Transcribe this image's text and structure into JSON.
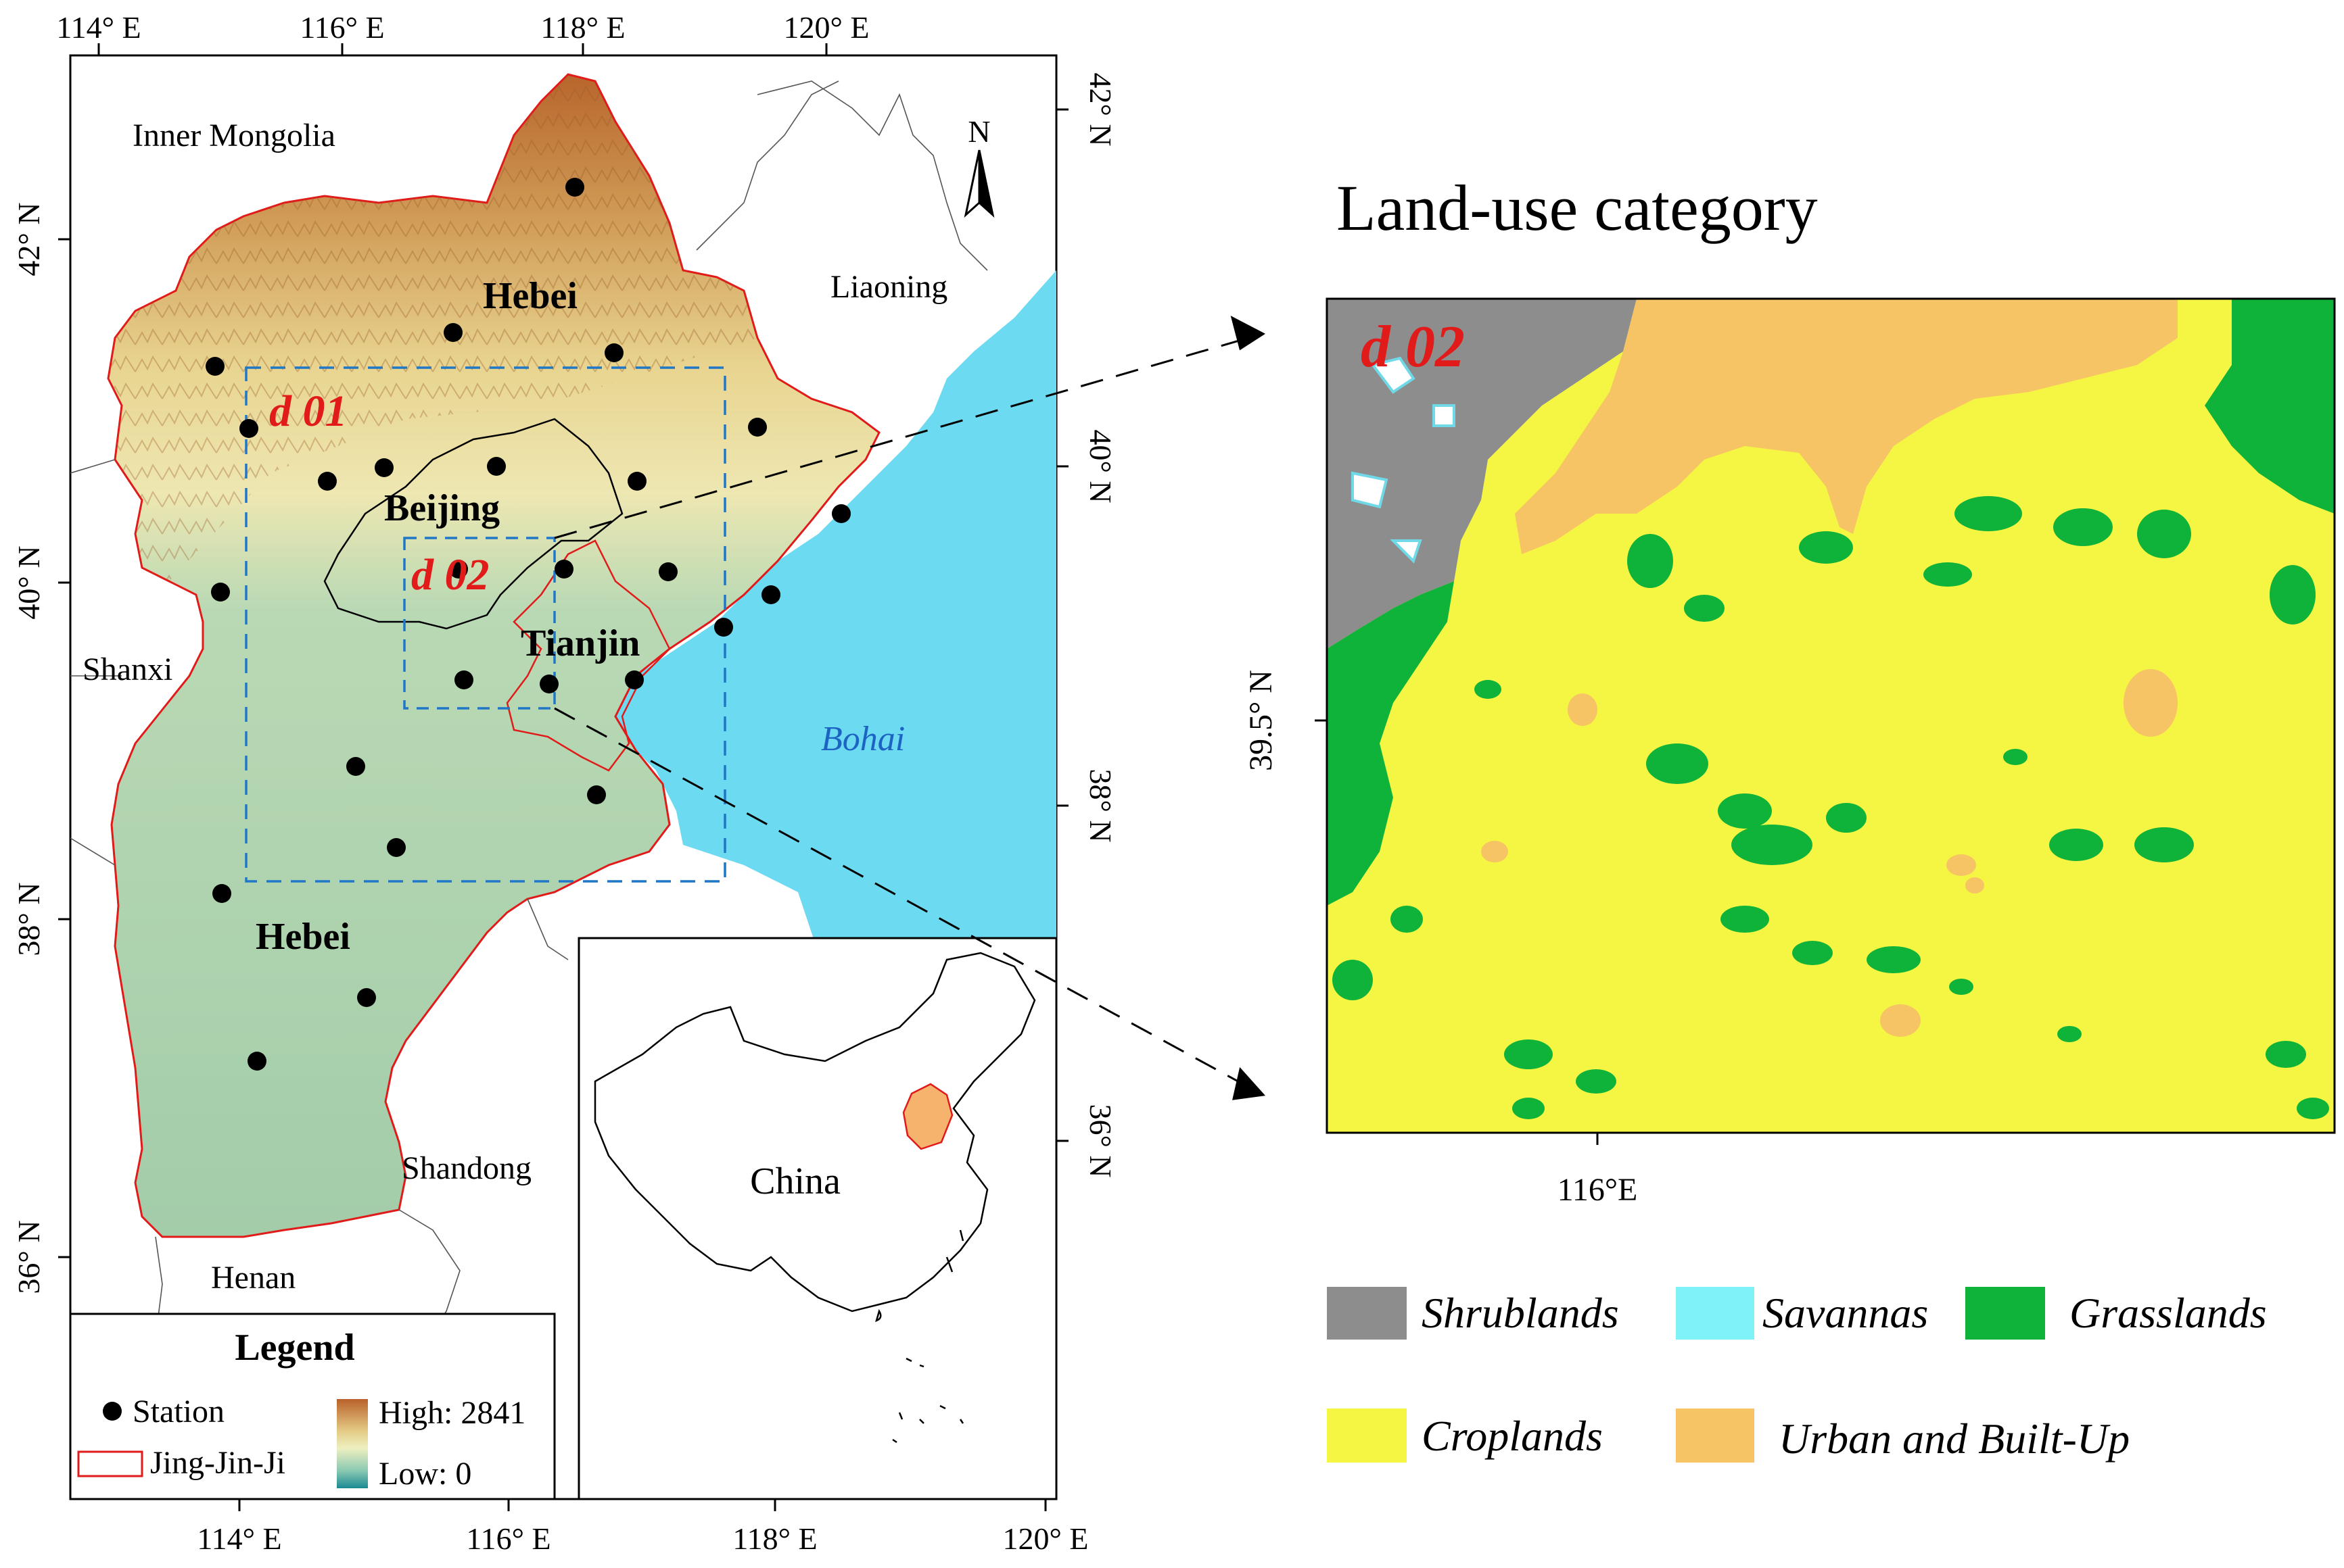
{
  "left_map": {
    "top_ticks": [
      "114° E",
      "116° E",
      "118° E",
      "120° E"
    ],
    "bottom_ticks": [
      "114° E",
      "116° E",
      "118° E",
      "120° E"
    ],
    "left_ticks": [
      "42° N",
      "40° N",
      "38° N",
      "36° N"
    ],
    "right_ticks": [
      "42° N",
      "40° N",
      "38° N",
      "36° N"
    ],
    "regions": {
      "inner_mongolia": "Inner Mongolia",
      "liaoning": "Liaoning",
      "shanxi": "Shanxi",
      "shandong": "Shandong",
      "henan": "Henan",
      "bohai": "Bohai",
      "hebei_north": "Hebei",
      "hebei_south": "Hebei",
      "beijing": "Beijing",
      "tianjin": "Tianjin"
    },
    "domains": {
      "d01": "d 01",
      "d02": "d 02"
    },
    "north_arrow": "N",
    "inset_label": "China",
    "legend": {
      "title": "Legend",
      "station": "Station",
      "boundary": "Jing-Jin-Ji",
      "high": "High: 2841",
      "low": "Low: 0"
    },
    "colors": {
      "water": "#6cdaf0",
      "lowland": "#a6cfb0",
      "upland": "#e7d58e",
      "mountain": "#c98a4a",
      "boundary_red": "#e11a1a",
      "domain_blue": "#1f77c8"
    }
  },
  "right_map": {
    "title": "Land-use category",
    "domain_label": "d 02",
    "y_tick": "39.5° N",
    "x_tick": "116°E",
    "legend": [
      {
        "label": "Shrublands",
        "color": "#8d8d8d"
      },
      {
        "label": "Savannas",
        "color": "#7ef2f6"
      },
      {
        "label": "Grasslands",
        "color": "#0fb33a"
      },
      {
        "label": "Croplands",
        "color": "#f5f544"
      },
      {
        "label": "Urban and Built-Up",
        "color": "#f6c365"
      }
    ]
  }
}
